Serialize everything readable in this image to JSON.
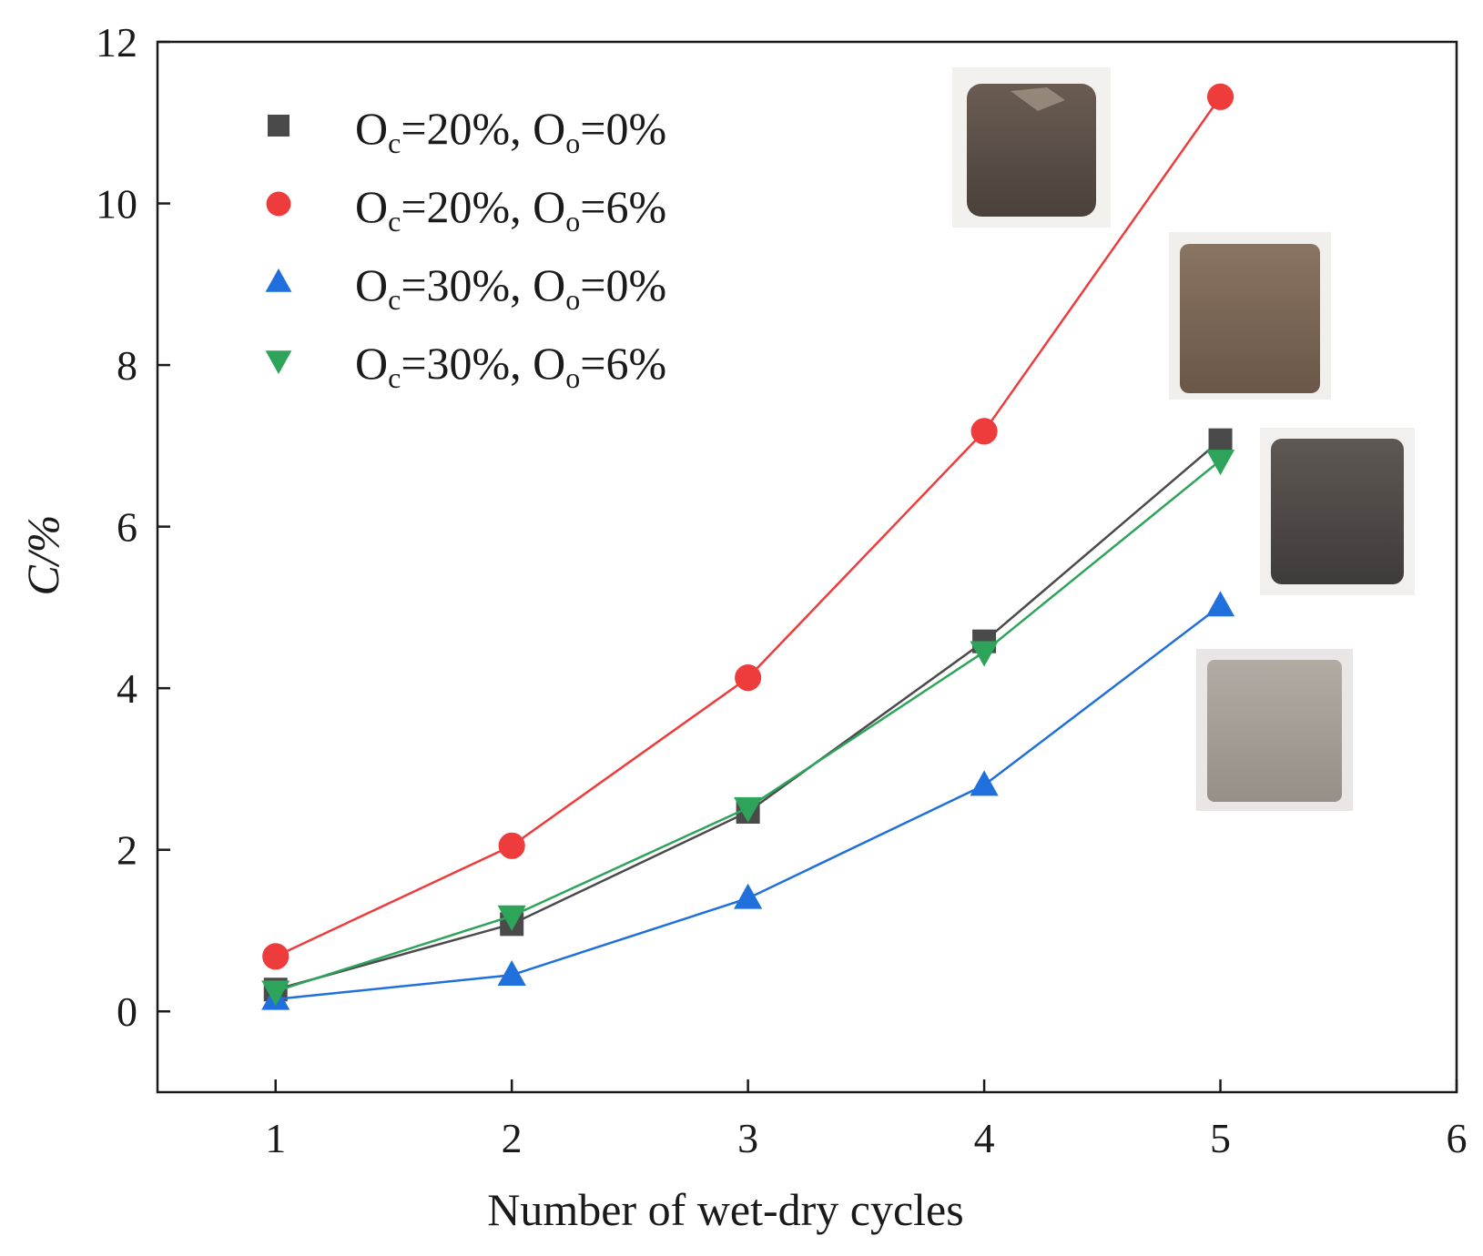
{
  "chart_data": {
    "type": "line",
    "title": "",
    "xlabel": "Number of wet-dry cycles",
    "ylabel": "C/%",
    "xlim": [
      0.5,
      6
    ],
    "ylim": [
      -1,
      12
    ],
    "xticks": [
      1,
      2,
      3,
      4,
      5,
      6
    ],
    "yticks": [
      0,
      2,
      4,
      6,
      8,
      10,
      12
    ],
    "x": [
      1,
      2,
      3,
      4,
      5
    ],
    "series": [
      {
        "name": "Oc=20%, Oo=0%",
        "base": "O",
        "sub1": "c",
        "mid": "=20%, O",
        "sub2": "o",
        "tail": "=0%",
        "marker": "square",
        "color": "#4a4a4a",
        "values": [
          0.27,
          1.08,
          2.47,
          4.58,
          7.07
        ]
      },
      {
        "name": "Oc=20%, Oo=6%",
        "base": "O",
        "sub1": "c",
        "mid": "=20%, O",
        "sub2": "o",
        "tail": "=6%",
        "marker": "circle",
        "color": "#ee3b3b",
        "values": [
          0.68,
          2.05,
          4.13,
          7.18,
          11.32
        ]
      },
      {
        "name": "Oc=30%, Oo=0%",
        "base": "O",
        "sub1": "c",
        "mid": "=30%, O",
        "sub2": "o",
        "tail": "=0%",
        "marker": "triangle-up",
        "color": "#1f6fdc",
        "values": [
          0.15,
          0.45,
          1.4,
          2.8,
          5.02
        ]
      },
      {
        "name": "Oc=30%, Oo=6%",
        "base": "O",
        "sub1": "c",
        "mid": "=30%, O",
        "sub2": "o",
        "tail": "=6%",
        "marker": "triangle-down",
        "color": "#2ea45a",
        "values": [
          0.25,
          1.18,
          2.52,
          4.45,
          6.82
        ]
      }
    ],
    "legend_position": "top-left",
    "insets": [
      {
        "label": "specimen-photo",
        "color": "#5b5048"
      },
      {
        "label": "specimen-photo",
        "color": "#7a6555"
      },
      {
        "label": "specimen-photo",
        "color": "#4e4a48"
      },
      {
        "label": "specimen-photo",
        "color": "#a39c95"
      }
    ]
  }
}
